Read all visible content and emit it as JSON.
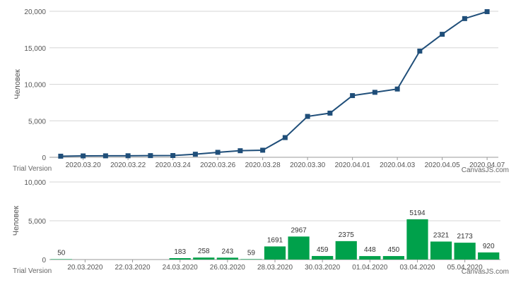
{
  "chart_data": [
    {
      "type": "line",
      "ylabel": "Человек",
      "ylim": [
        0,
        20000
      ],
      "yticks": [
        "0",
        "5,000",
        "10,000",
        "15,000",
        "20,000"
      ],
      "xticks": [
        "2020.03.20",
        "2020.03.22",
        "2020.03.24",
        "2020.03.26",
        "2020.03.28",
        "2020.03.30",
        "2020.04.01",
        "2020.04.03",
        "2020.04.05",
        "2020.04.07"
      ],
      "grid": true,
      "color": "#1f4e79",
      "x": [
        "2020.03.19",
        "2020.03.20",
        "2020.03.21",
        "2020.03.22",
        "2020.03.23",
        "2020.03.24",
        "2020.03.25",
        "2020.03.26",
        "2020.03.27",
        "2020.03.28",
        "2020.03.29",
        "2020.03.30",
        "2020.03.31",
        "2020.04.01",
        "2020.04.02",
        "2020.04.03",
        "2020.04.04",
        "2020.04.05",
        "2020.04.06",
        "2020.04.07"
      ],
      "values": [
        150,
        190,
        200,
        210,
        230,
        240,
        420,
        680,
        900,
        970,
        2700,
        5600,
        6050,
        8450,
        8900,
        9350,
        14550,
        16850,
        19000,
        19950
      ]
    },
    {
      "type": "bar",
      "ylabel": "Человек",
      "ylim": [
        0,
        10000
      ],
      "yticks": [
        "0",
        "5,000",
        "10,000"
      ],
      "xticks": [
        "20.03.2020",
        "22.03.2020",
        "24.03.2020",
        "26.03.2020",
        "28.03.2020",
        "30.03.2020",
        "01.04.2020",
        "03.04.2020",
        "05.04.2020"
      ],
      "grid": true,
      "color": "#00a14b",
      "categories": [
        "19.03.2020",
        "20.03.2020",
        "21.03.2020",
        "22.03.2020",
        "23.03.2020",
        "24.03.2020",
        "25.03.2020",
        "26.03.2020",
        "27.03.2020",
        "28.03.2020",
        "29.03.2020",
        "30.03.2020",
        "31.03.2020",
        "01.04.2020",
        "02.04.2020",
        "03.04.2020",
        "04.04.2020",
        "05.04.2020",
        "06.04.2020"
      ],
      "values": [
        50,
        0,
        0,
        0,
        0,
        183,
        258,
        243,
        59,
        1691,
        2967,
        459,
        2375,
        448,
        450,
        5194,
        2321,
        2173,
        920
      ],
      "labels": [
        "50",
        "",
        "",
        "",
        "",
        "183",
        "258",
        "243",
        "59",
        "1691",
        "2967",
        "459",
        "2375",
        "448",
        "450",
        "5194",
        "2321",
        "2173",
        "920"
      ]
    }
  ],
  "watermark": {
    "trial": "Trial Version",
    "brand": "CanvasJS.com"
  }
}
